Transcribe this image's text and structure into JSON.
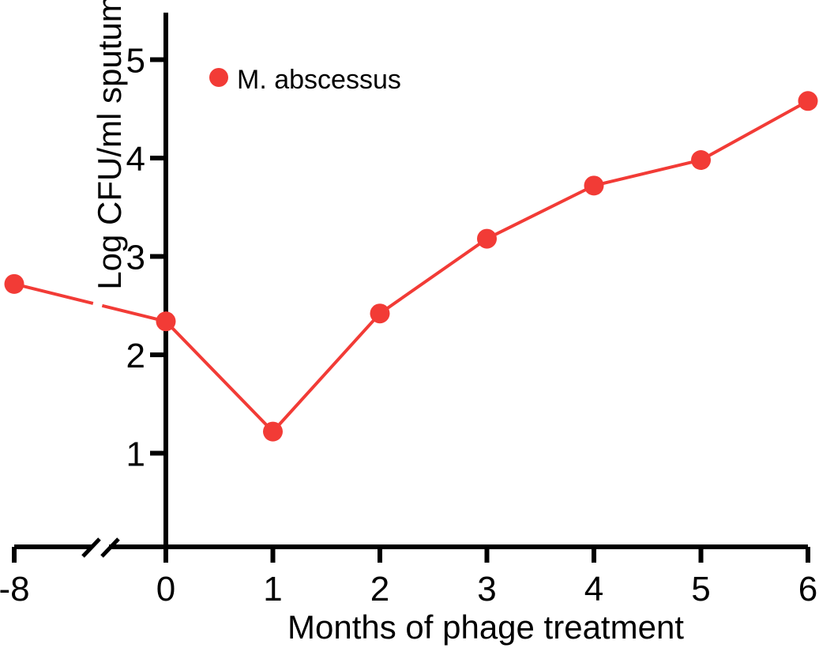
{
  "chart_data": {
    "type": "line",
    "xlabel": "Months of phage treatment",
    "ylabel": "Log CFU/ml sputum",
    "x_ticks": [
      "-8",
      "0",
      "1",
      "2",
      "3",
      "4",
      "5",
      "6"
    ],
    "y_ticks": [
      "1",
      "2",
      "3",
      "4",
      "5"
    ],
    "x_axis_break": "between -8 and 0",
    "ylim": [
      0,
      5.5
    ],
    "grid": false,
    "legend_position": "top-left",
    "series": [
      {
        "name": "M. abscessus",
        "color": "#f23b36",
        "x": [
          -8,
          0,
          1,
          2,
          3,
          4,
          5,
          6
        ],
        "y": [
          2.72,
          2.34,
          1.22,
          2.42,
          3.18,
          3.72,
          3.98,
          4.58
        ]
      }
    ]
  }
}
